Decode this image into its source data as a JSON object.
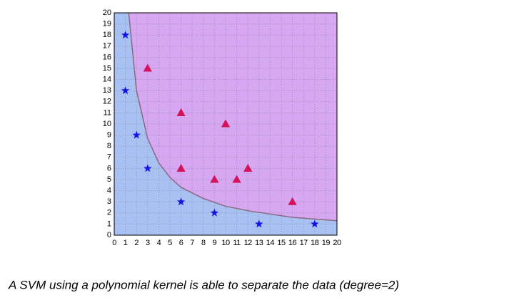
{
  "chart_data": {
    "type": "scatter",
    "xlim": [
      0,
      20
    ],
    "ylim": [
      0,
      20
    ],
    "xticks": [
      0,
      1,
      2,
      3,
      4,
      5,
      6,
      7,
      8,
      9,
      10,
      11,
      12,
      13,
      14,
      15,
      16,
      17,
      18,
      19,
      20
    ],
    "yticks": [
      0,
      1,
      2,
      3,
      4,
      5,
      6,
      7,
      8,
      9,
      10,
      11,
      12,
      13,
      14,
      15,
      16,
      17,
      18,
      19,
      20
    ],
    "grid": true,
    "region_colors": {
      "above": "#d6a8f2",
      "below": "#a8c1f2"
    },
    "series": [
      {
        "marker": "star",
        "color": "#1414e6",
        "x": [
          1,
          1,
          2,
          3,
          6,
          9,
          13,
          18
        ],
        "values": [
          18,
          13,
          9,
          6,
          3,
          2,
          1,
          1
        ]
      },
      {
        "marker": "triangle",
        "color": "#d4145a",
        "x": [
          3,
          6,
          10,
          6,
          9,
          11,
          12,
          16
        ],
        "values": [
          15,
          11,
          10,
          6,
          5,
          5,
          6,
          3
        ]
      }
    ],
    "boundary": {
      "color": "#8a6a80",
      "x": [
        1.3,
        2,
        3,
        4,
        5,
        6,
        8,
        10,
        12,
        14,
        16,
        18,
        20
      ],
      "values": [
        20,
        13,
        8.7,
        6.5,
        5.2,
        4.3,
        3.3,
        2.6,
        2.2,
        1.9,
        1.6,
        1.45,
        1.3
      ]
    },
    "caption": "A SVM using a polynomial kernel is able to separate the data (degree=2)"
  }
}
